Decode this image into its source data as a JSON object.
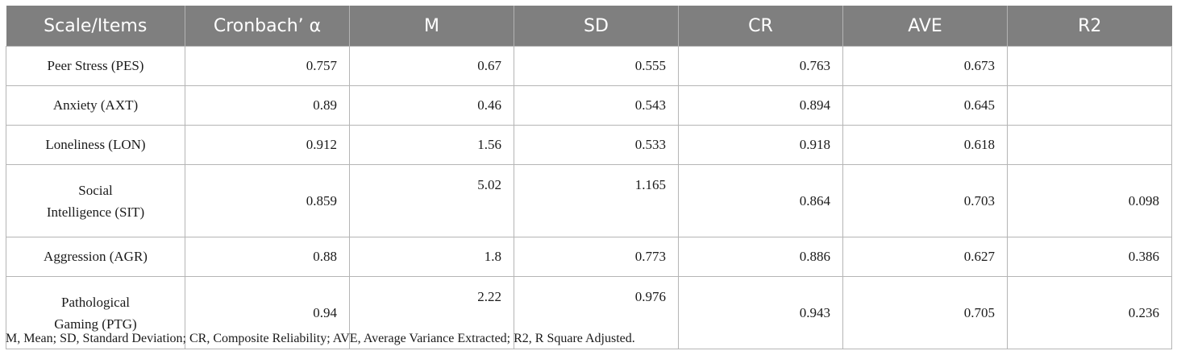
{
  "table": {
    "headers": [
      "Scale/Items",
      "Cronbach’ α",
      "M",
      "SD",
      "CR",
      "AVE",
      "R2"
    ],
    "rows": [
      {
        "label": "Peer Stress (PES)",
        "alpha": "0.757",
        "m": "0.67",
        "sd": "0.555",
        "cr": "0.763",
        "ave": "0.673",
        "r2": ""
      },
      {
        "label": "Anxiety (AXT)",
        "alpha": "0.89",
        "m": "0.46",
        "sd": "0.543",
        "cr": "0.894",
        "ave": "0.645",
        "r2": ""
      },
      {
        "label": "Loneliness (LON)",
        "alpha": "0.912",
        "m": "1.56",
        "sd": "0.533",
        "cr": "0.918",
        "ave": "0.618",
        "r2": ""
      },
      {
        "label_line1": "Social",
        "label_line2": "Intelligence (SIT)",
        "alpha": "0.859",
        "m": "5.02",
        "sd": "1.165",
        "cr": "0.864",
        "ave": "0.703",
        "r2": "0.098"
      },
      {
        "label": "Aggression (AGR)",
        "alpha": "0.88",
        "m": "1.8",
        "sd": "0.773",
        "cr": "0.886",
        "ave": "0.627",
        "r2": "0.386"
      },
      {
        "label_line1": "Pathological",
        "label_line2": "Gaming (PTG)",
        "alpha": "0.94",
        "m": "2.22",
        "sd": "0.976",
        "cr": "0.943",
        "ave": "0.705",
        "r2": "0.236"
      }
    ]
  },
  "note": "M, Mean; SD, Standard Deviation; CR, Composite Reliability; AVE, Average Variance Extracted; R2, R Square Adjusted."
}
